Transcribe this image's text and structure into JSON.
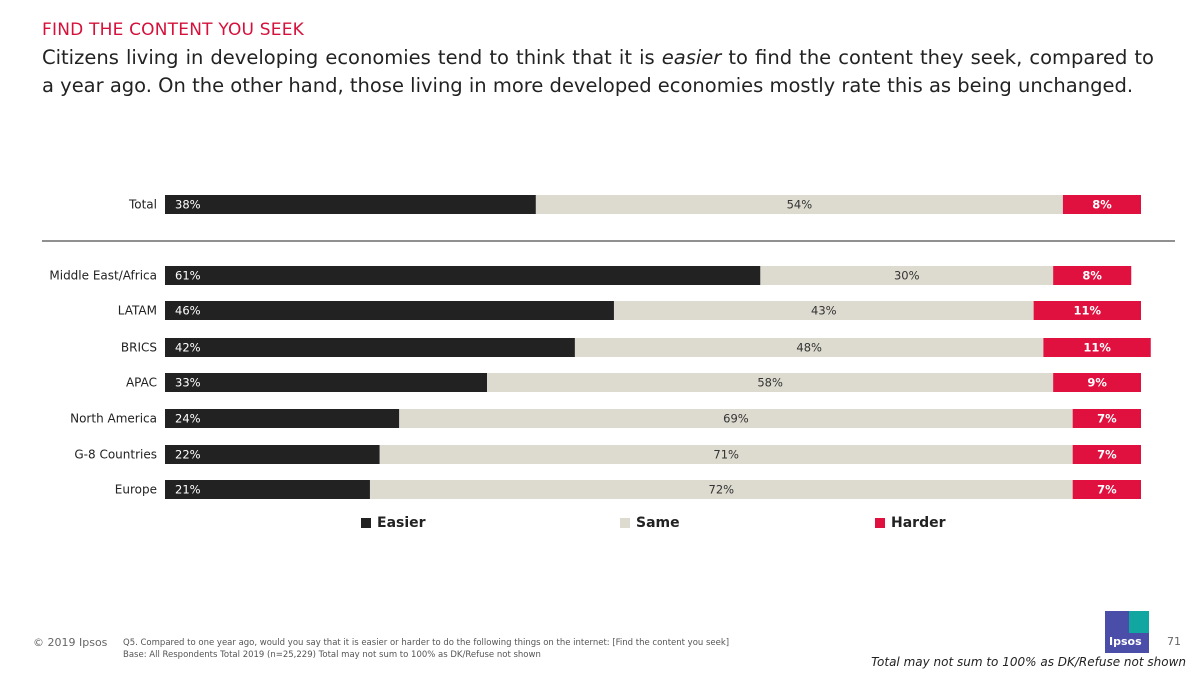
{
  "header": {
    "section_title": "FIND THE CONTENT YOU SEEK",
    "subtitle_part1": "Citizens living in developing economies tend to think that it is ",
    "subtitle_emphasis": "easier",
    "subtitle_part2": " to find the content they seek, compared to a year ago. On the other hand, those living in more developed economies mostly rate this as being unchanged."
  },
  "colors": {
    "easier": "#222222",
    "same": "#dddbd0",
    "harder": "#e0103f",
    "accent": "#d5103a"
  },
  "chart_data": {
    "type": "bar",
    "orientation": "horizontal",
    "stacked": true,
    "unit": "%",
    "categories": [
      "Total",
      "Middle East/Africa",
      "LATAM",
      "BRICS",
      "APAC",
      "North America",
      "G-8 Countries",
      "Europe"
    ],
    "series": [
      {
        "name": "Easier",
        "values": [
          38,
          61,
          46,
          42,
          33,
          24,
          22,
          21
        ]
      },
      {
        "name": "Same",
        "values": [
          54,
          30,
          43,
          48,
          58,
          69,
          71,
          72
        ]
      },
      {
        "name": "Harder",
        "values": [
          8,
          8,
          11,
          11,
          9,
          7,
          7,
          7
        ]
      }
    ],
    "legend": [
      "Easier",
      "Same",
      "Harder"
    ],
    "legend_position": "bottom",
    "xlim": [
      0,
      100
    ],
    "separator_after": "Total"
  },
  "footer": {
    "copyright": "© 2019 Ipsos",
    "note_line1": "Q5. Compared to one year ago, would you say that it is easier or harder to do the following things on the internet: [Find the content you seek]",
    "note_line2": "Base: All Respondents Total  2019 (n=25,229) Total may not sum to 100% as DK/Refuse not shown",
    "logo_text": "Ipsos",
    "page_number": "71",
    "disclaimer": "Total may not sum to 100% as DK/Refuse not shown"
  }
}
